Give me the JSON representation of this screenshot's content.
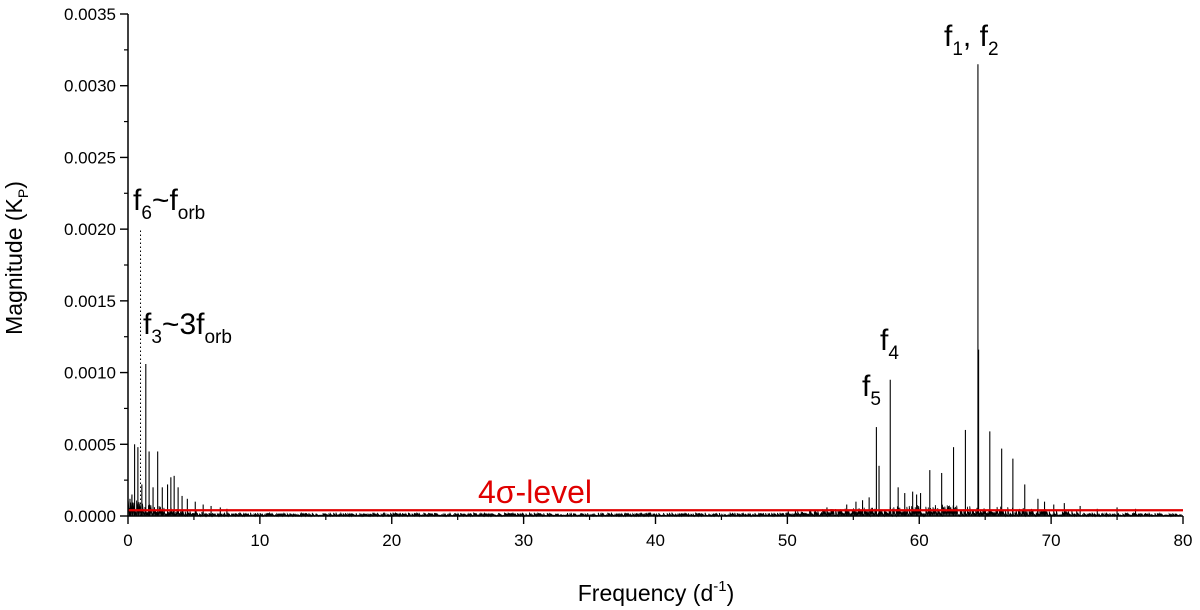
{
  "chart_data": {
    "type": "line",
    "xlabel": {
      "main": "Frequency (d",
      "sup": "-1",
      "close": ")"
    },
    "ylabel": {
      "main": "Magnitude (K",
      "sub": "P",
      "close": ")"
    },
    "xlim": [
      0,
      80
    ],
    "ylim": [
      0,
      0.0035
    ],
    "x_ticks": [
      "0",
      "10",
      "20",
      "30",
      "40",
      "50",
      "60",
      "70",
      "80"
    ],
    "y_ticks": [
      "0.0000",
      "0.0005",
      "0.0010",
      "0.0015",
      "0.0020",
      "0.0025",
      "0.0030",
      "0.0035"
    ],
    "grid": false,
    "series": [
      {
        "color": "#000000",
        "peaks": [
          [
            0.15,
            0.00012
          ],
          [
            0.3,
            0.00015
          ],
          [
            0.5,
            0.0005
          ],
          [
            0.75,
            0.00048
          ],
          [
            1.05,
            0.00022
          ],
          [
            1.35,
            0.00106
          ],
          [
            1.6,
            0.00045
          ],
          [
            1.9,
            0.0002
          ],
          [
            2.25,
            0.00045
          ],
          [
            2.6,
            0.0002
          ],
          [
            3.0,
            0.00022
          ],
          [
            3.25,
            0.00027
          ],
          [
            3.5,
            0.00028
          ],
          [
            3.8,
            0.0002
          ],
          [
            4.1,
            0.00014
          ],
          [
            4.5,
            0.00012
          ],
          [
            5.1,
            0.0001
          ],
          [
            5.7,
            8e-05
          ],
          [
            6.3,
            7e-05
          ],
          [
            7.0,
            6e-05
          ],
          [
            7.5,
            5e-05
          ],
          [
            53.0,
            6e-05
          ],
          [
            54.5,
            8e-05
          ],
          [
            55.2,
            0.0001
          ],
          [
            55.7,
            0.00011
          ],
          [
            56.2,
            0.00013
          ],
          [
            56.75,
            0.00062
          ],
          [
            56.95,
            0.00035
          ],
          [
            57.8,
            0.00095
          ],
          [
            58.4,
            0.0002
          ],
          [
            58.9,
            0.00016
          ],
          [
            59.5,
            0.00017
          ],
          [
            59.8,
            0.00015
          ],
          [
            60.1,
            0.00016
          ],
          [
            60.8,
            0.00032
          ],
          [
            61.7,
            0.0003
          ],
          [
            62.6,
            0.00048
          ],
          [
            63.5,
            0.0006
          ],
          [
            64.45,
            0.00315
          ],
          [
            64.5,
            0.00116
          ],
          [
            65.35,
            0.00059
          ],
          [
            66.25,
            0.00047
          ],
          [
            67.1,
            0.0004
          ],
          [
            68.0,
            0.00022
          ],
          [
            69.0,
            0.00012
          ],
          [
            69.5,
            0.0001
          ],
          [
            70.2,
            8e-05
          ],
          [
            71.0,
            9e-05
          ],
          [
            72.2,
            7e-05
          ],
          [
            73.5,
            5e-05
          ],
          [
            75.0,
            6e-05
          ],
          [
            76.4,
            5e-05
          ]
        ]
      }
    ],
    "sigma_level": {
      "label": "4σ-level",
      "value": 4e-05,
      "color": "#e00000"
    },
    "forb_marker": {
      "x": 0.95,
      "y": 0.002
    },
    "annotations": [
      {
        "base": "f",
        "sub": "6",
        "mid": "~f",
        "sub2": "orb"
      },
      {
        "base": "f",
        "sub": "3",
        "mid": "~3f",
        "sub2": "orb"
      },
      {
        "base": "f",
        "sub": "4"
      },
      {
        "base": "f",
        "sub": "5"
      },
      {
        "base": "f",
        "sub": "1",
        "mid": ", f",
        "sub2": "2"
      }
    ]
  }
}
